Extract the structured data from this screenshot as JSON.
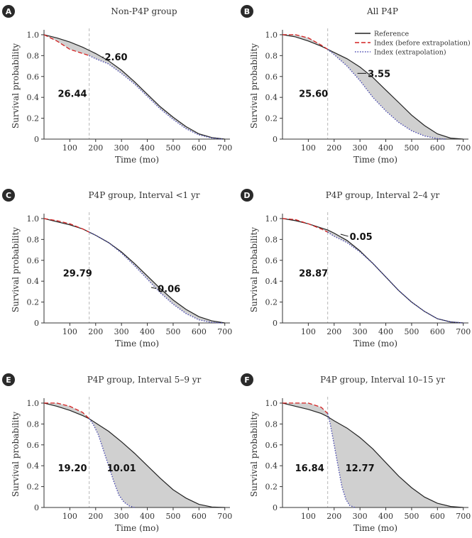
{
  "figure": {
    "xlabel": "Time (mo)",
    "ylabel": "Survival probability",
    "xticks": [
      100,
      200,
      300,
      400,
      500,
      600,
      700
    ],
    "yticks": [
      "0",
      "0.2",
      "0.4",
      "0.6",
      "0.8",
      "1.0"
    ],
    "xlim": [
      0,
      720
    ],
    "ylim": [
      0,
      1.02
    ],
    "extrapolation_start": 175
  },
  "legend": {
    "reference": "Reference",
    "before": "Index (before extrapolation)",
    "extrapolation": "Index (extrapolation)"
  },
  "colors": {
    "reference": "#222222",
    "before": "#d42020",
    "extrapolation": "#4a4ab0",
    "fill": "#d0d0d0",
    "vline": "#b8b8b8",
    "badge": "#2a2a2a"
  },
  "chart_data": [
    {
      "type": "area",
      "letter": "A",
      "title": "Non-P4P group",
      "labels": [
        {
          "text": "26.44",
          "x": 110,
          "y": 0.44
        },
        {
          "text": "2.60",
          "x": 235,
          "y": 0.79,
          "leader_x": 225,
          "leader_y": 0.78
        }
      ],
      "reference": [
        [
          0,
          1.0
        ],
        [
          50,
          0.97
        ],
        [
          100,
          0.93
        ],
        [
          150,
          0.88
        ],
        [
          175,
          0.85
        ],
        [
          200,
          0.82
        ],
        [
          250,
          0.75
        ],
        [
          300,
          0.66
        ],
        [
          350,
          0.55
        ],
        [
          400,
          0.43
        ],
        [
          450,
          0.31
        ],
        [
          500,
          0.21
        ],
        [
          550,
          0.12
        ],
        [
          600,
          0.05
        ],
        [
          650,
          0.015
        ],
        [
          700,
          0.0
        ]
      ],
      "before": [
        [
          0,
          1.0
        ],
        [
          50,
          0.94
        ],
        [
          100,
          0.86
        ],
        [
          150,
          0.82
        ],
        [
          175,
          0.8
        ]
      ],
      "extrapolation": [
        [
          175,
          0.8
        ],
        [
          200,
          0.77
        ],
        [
          250,
          0.72
        ],
        [
          300,
          0.63
        ],
        [
          350,
          0.53
        ],
        [
          400,
          0.41
        ],
        [
          450,
          0.29
        ],
        [
          500,
          0.19
        ],
        [
          550,
          0.1
        ],
        [
          600,
          0.04
        ],
        [
          650,
          0.01
        ],
        [
          690,
          0.0
        ]
      ]
    },
    {
      "type": "area",
      "letter": "B",
      "title": "All P4P",
      "labels": [
        {
          "text": "25.60",
          "x": 120,
          "y": 0.44
        },
        {
          "text": "3.55",
          "x": 330,
          "y": 0.63,
          "leader_x": 290,
          "leader_y": 0.63
        }
      ],
      "reference": [
        [
          0,
          1.0
        ],
        [
          50,
          0.98
        ],
        [
          100,
          0.94
        ],
        [
          150,
          0.89
        ],
        [
          175,
          0.86
        ],
        [
          200,
          0.83
        ],
        [
          250,
          0.77
        ],
        [
          300,
          0.69
        ],
        [
          350,
          0.59
        ],
        [
          400,
          0.47
        ],
        [
          450,
          0.35
        ],
        [
          500,
          0.23
        ],
        [
          550,
          0.13
        ],
        [
          600,
          0.05
        ],
        [
          650,
          0.01
        ],
        [
          700,
          0.0
        ]
      ],
      "before": [
        [
          0,
          1.0
        ],
        [
          50,
          1.0
        ],
        [
          100,
          0.97
        ],
        [
          150,
          0.9
        ],
        [
          175,
          0.86
        ]
      ],
      "extrapolation": [
        [
          175,
          0.86
        ],
        [
          200,
          0.81
        ],
        [
          250,
          0.7
        ],
        [
          300,
          0.56
        ],
        [
          350,
          0.4
        ],
        [
          400,
          0.27
        ],
        [
          450,
          0.16
        ],
        [
          500,
          0.08
        ],
        [
          550,
          0.03
        ],
        [
          600,
          0.005
        ],
        [
          630,
          0.0
        ]
      ]
    },
    {
      "type": "area",
      "letter": "C",
      "title": "P4P group, Interval <1 yr",
      "labels": [
        {
          "text": "29.79",
          "x": 130,
          "y": 0.48
        },
        {
          "text": "0.06",
          "x": 440,
          "y": 0.33,
          "leader_x": 415,
          "leader_y": 0.34
        }
      ],
      "reference": [
        [
          0,
          1.0
        ],
        [
          50,
          0.97
        ],
        [
          100,
          0.94
        ],
        [
          150,
          0.9
        ],
        [
          175,
          0.87
        ],
        [
          200,
          0.84
        ],
        [
          250,
          0.77
        ],
        [
          300,
          0.68
        ],
        [
          350,
          0.57
        ],
        [
          400,
          0.45
        ],
        [
          450,
          0.33
        ],
        [
          500,
          0.22
        ],
        [
          550,
          0.13
        ],
        [
          600,
          0.06
        ],
        [
          650,
          0.02
        ],
        [
          700,
          0.0
        ]
      ],
      "before": [
        [
          0,
          1.0
        ],
        [
          50,
          0.98
        ],
        [
          100,
          0.95
        ],
        [
          150,
          0.9
        ],
        [
          175,
          0.87
        ]
      ],
      "extrapolation": [
        [
          175,
          0.87
        ],
        [
          200,
          0.84
        ],
        [
          250,
          0.77
        ],
        [
          300,
          0.67
        ],
        [
          350,
          0.55
        ],
        [
          400,
          0.42
        ],
        [
          450,
          0.29
        ],
        [
          500,
          0.18
        ],
        [
          550,
          0.09
        ],
        [
          600,
          0.03
        ],
        [
          650,
          0.005
        ],
        [
          690,
          0.0
        ]
      ]
    },
    {
      "type": "area",
      "letter": "D",
      "title": "P4P group, Interval 2–4 yr",
      "labels": [
        {
          "text": "28.87",
          "x": 120,
          "y": 0.48
        },
        {
          "text": "0.05",
          "x": 260,
          "y": 0.83,
          "leader_x": 225,
          "leader_y": 0.85
        }
      ],
      "reference": [
        [
          0,
          1.0
        ],
        [
          50,
          0.98
        ],
        [
          100,
          0.95
        ],
        [
          150,
          0.91
        ],
        [
          175,
          0.89
        ],
        [
          200,
          0.86
        ],
        [
          250,
          0.79
        ],
        [
          300,
          0.69
        ],
        [
          350,
          0.57
        ],
        [
          400,
          0.44
        ],
        [
          450,
          0.31
        ],
        [
          500,
          0.2
        ],
        [
          550,
          0.11
        ],
        [
          600,
          0.04
        ],
        [
          650,
          0.01
        ],
        [
          700,
          0.0
        ]
      ],
      "before": [
        [
          0,
          1.0
        ],
        [
          50,
          0.99
        ],
        [
          100,
          0.95
        ],
        [
          150,
          0.9
        ],
        [
          175,
          0.87
        ]
      ],
      "extrapolation": [
        [
          175,
          0.87
        ],
        [
          200,
          0.83
        ],
        [
          250,
          0.77
        ],
        [
          300,
          0.68
        ],
        [
          350,
          0.57
        ],
        [
          400,
          0.44
        ],
        [
          450,
          0.31
        ],
        [
          500,
          0.2
        ],
        [
          550,
          0.11
        ],
        [
          600,
          0.04
        ],
        [
          650,
          0.01
        ],
        [
          700,
          0.0
        ]
      ]
    },
    {
      "type": "area",
      "letter": "E",
      "title": "P4P group, Interval 5–9 yr",
      "labels": [
        {
          "text": "19.20",
          "x": 110,
          "y": 0.38
        },
        {
          "text": "10.01",
          "x": 300,
          "y": 0.38
        }
      ],
      "reference": [
        [
          0,
          1.0
        ],
        [
          50,
          0.97
        ],
        [
          100,
          0.93
        ],
        [
          150,
          0.88
        ],
        [
          175,
          0.85
        ],
        [
          200,
          0.81
        ],
        [
          250,
          0.73
        ],
        [
          300,
          0.63
        ],
        [
          350,
          0.52
        ],
        [
          400,
          0.4
        ],
        [
          450,
          0.28
        ],
        [
          500,
          0.17
        ],
        [
          550,
          0.09
        ],
        [
          600,
          0.03
        ],
        [
          650,
          0.005
        ],
        [
          700,
          0.0
        ]
      ],
      "before": [
        [
          0,
          1.0
        ],
        [
          50,
          1.0
        ],
        [
          100,
          0.97
        ],
        [
          150,
          0.91
        ],
        [
          175,
          0.85
        ]
      ],
      "extrapolation": [
        [
          175,
          0.85
        ],
        [
          190,
          0.8
        ],
        [
          210,
          0.7
        ],
        [
          230,
          0.55
        ],
        [
          250,
          0.4
        ],
        [
          270,
          0.25
        ],
        [
          290,
          0.12
        ],
        [
          310,
          0.05
        ],
        [
          330,
          0.015
        ],
        [
          350,
          0.0
        ]
      ]
    },
    {
      "type": "area",
      "letter": "F",
      "title": "P4P group, Interval 10–15 yr",
      "labels": [
        {
          "text": "16.84",
          "x": 105,
          "y": 0.38
        },
        {
          "text": "12.77",
          "x": 300,
          "y": 0.38
        }
      ],
      "reference": [
        [
          0,
          1.0
        ],
        [
          50,
          0.97
        ],
        [
          100,
          0.94
        ],
        [
          150,
          0.9
        ],
        [
          175,
          0.87
        ],
        [
          200,
          0.83
        ],
        [
          250,
          0.76
        ],
        [
          300,
          0.67
        ],
        [
          350,
          0.56
        ],
        [
          400,
          0.43
        ],
        [
          450,
          0.3
        ],
        [
          500,
          0.19
        ],
        [
          550,
          0.1
        ],
        [
          600,
          0.04
        ],
        [
          650,
          0.01
        ],
        [
          700,
          0.0
        ]
      ],
      "before": [
        [
          0,
          1.0
        ],
        [
          50,
          1.0
        ],
        [
          100,
          1.0
        ],
        [
          150,
          0.96
        ],
        [
          175,
          0.9
        ]
      ],
      "extrapolation": [
        [
          175,
          0.9
        ],
        [
          185,
          0.8
        ],
        [
          200,
          0.6
        ],
        [
          215,
          0.4
        ],
        [
          230,
          0.2
        ],
        [
          245,
          0.08
        ],
        [
          260,
          0.02
        ],
        [
          280,
          0.0
        ]
      ]
    }
  ]
}
